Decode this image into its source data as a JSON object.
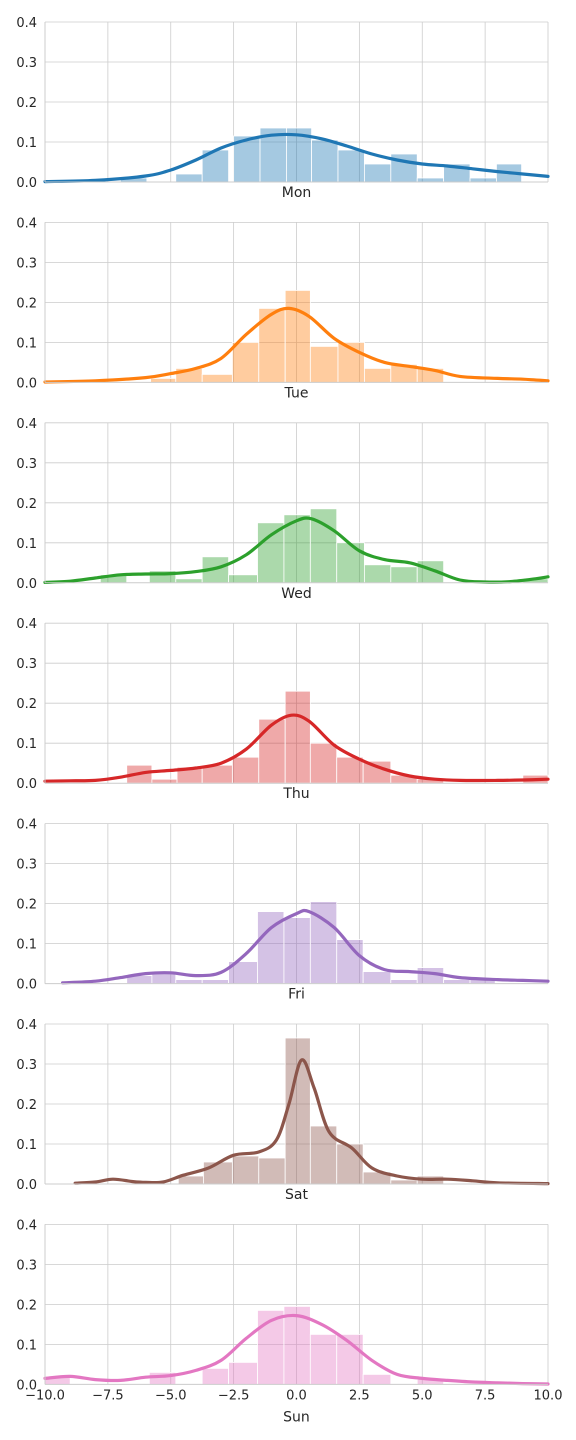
{
  "chart_data": [
    {
      "type": "bar",
      "xlabel": "Mon",
      "color": "#1f77b4",
      "xlim": [
        -10.0,
        10.0
      ],
      "ylim": [
        0.0,
        0.4
      ],
      "yticks": [
        "0.0",
        "0.1",
        "0.2",
        "0.3",
        "0.4"
      ],
      "bins": [
        [
          -7.0,
          -5.95,
          0.01
        ],
        [
          -4.8,
          -3.75,
          0.02
        ],
        [
          -3.75,
          -2.7,
          0.08
        ],
        [
          -2.5,
          -1.45,
          0.115
        ],
        [
          -1.45,
          -0.4,
          0.135
        ],
        [
          -0.4,
          0.6,
          0.135
        ],
        [
          0.6,
          1.65,
          0.105
        ],
        [
          1.65,
          2.7,
          0.08
        ],
        [
          2.7,
          3.75,
          0.045
        ],
        [
          3.75,
          4.8,
          0.07
        ],
        [
          4.8,
          5.85,
          0.01
        ],
        [
          5.85,
          6.9,
          0.045
        ],
        [
          6.9,
          7.95,
          0.01
        ],
        [
          7.95,
          8.95,
          0.045
        ]
      ],
      "kde": [
        [
          -10,
          0.001
        ],
        [
          -8,
          0.004
        ],
        [
          -6,
          0.015
        ],
        [
          -5,
          0.03
        ],
        [
          -4,
          0.055
        ],
        [
          -3,
          0.085
        ],
        [
          -2,
          0.105
        ],
        [
          -1,
          0.117
        ],
        [
          0,
          0.118
        ],
        [
          1,
          0.108
        ],
        [
          2,
          0.09
        ],
        [
          3,
          0.07
        ],
        [
          4,
          0.055
        ],
        [
          5,
          0.045
        ],
        [
          6,
          0.04
        ],
        [
          7,
          0.033
        ],
        [
          8,
          0.026
        ],
        [
          9,
          0.02
        ],
        [
          10,
          0.014
        ]
      ]
    },
    {
      "type": "bar",
      "xlabel": "Tue",
      "color": "#ff7f0e",
      "xlim": [
        -10.0,
        10.0
      ],
      "ylim": [
        0.0,
        0.4
      ],
      "yticks": [
        "0.0",
        "0.1",
        "0.2",
        "0.3",
        "0.4"
      ],
      "bins": [
        [
          -5.8,
          -4.8,
          0.01
        ],
        [
          -4.8,
          -3.75,
          0.035
        ],
        [
          -3.75,
          -2.55,
          0.02
        ],
        [
          -2.55,
          -1.5,
          0.1
        ],
        [
          -1.5,
          -0.45,
          0.185
        ],
        [
          -0.45,
          0.55,
          0.23
        ],
        [
          0.55,
          1.65,
          0.09
        ],
        [
          1.65,
          2.7,
          0.1
        ],
        [
          2.7,
          3.75,
          0.035
        ],
        [
          3.75,
          4.8,
          0.045
        ],
        [
          4.8,
          5.85,
          0.035
        ]
      ],
      "kde": [
        [
          -10,
          0.001
        ],
        [
          -8,
          0.004
        ],
        [
          -6,
          0.012
        ],
        [
          -5,
          0.022
        ],
        [
          -4,
          0.035
        ],
        [
          -3,
          0.06
        ],
        [
          -2,
          0.12
        ],
        [
          -1,
          0.17
        ],
        [
          -0.3,
          0.185
        ],
        [
          0.5,
          0.165
        ],
        [
          1.5,
          0.11
        ],
        [
          2.5,
          0.075
        ],
        [
          3.5,
          0.05
        ],
        [
          4.5,
          0.04
        ],
        [
          5.5,
          0.03
        ],
        [
          6.5,
          0.015
        ],
        [
          8,
          0.01
        ],
        [
          9,
          0.008
        ],
        [
          10,
          0.004
        ]
      ]
    },
    {
      "type": "bar",
      "xlabel": "Wed",
      "color": "#2ca02c",
      "xlim": [
        -10.0,
        10.0
      ],
      "ylim": [
        0.0,
        0.4
      ],
      "yticks": [
        "0.0",
        "0.1",
        "0.2",
        "0.3",
        "0.4"
      ],
      "bins": [
        [
          -7.8,
          -6.75,
          0.02
        ],
        [
          -5.85,
          -4.8,
          0.03
        ],
        [
          -4.8,
          -3.75,
          0.01
        ],
        [
          -3.75,
          -2.7,
          0.065
        ],
        [
          -2.7,
          -1.55,
          0.02
        ],
        [
          -1.55,
          -0.5,
          0.15
        ],
        [
          -0.5,
          0.55,
          0.17
        ],
        [
          0.55,
          1.6,
          0.185
        ],
        [
          1.6,
          2.7,
          0.1
        ],
        [
          2.7,
          3.75,
          0.045
        ],
        [
          3.75,
          4.8,
          0.04
        ],
        [
          4.8,
          5.85,
          0.055
        ],
        [
          9.0,
          10.0,
          0.01
        ]
      ],
      "kde": [
        [
          -10,
          0.001
        ],
        [
          -9,
          0.004
        ],
        [
          -8,
          0.012
        ],
        [
          -7,
          0.02
        ],
        [
          -6,
          0.022
        ],
        [
          -5,
          0.023
        ],
        [
          -4,
          0.028
        ],
        [
          -3,
          0.04
        ],
        [
          -2,
          0.07
        ],
        [
          -1,
          0.12
        ],
        [
          0,
          0.155
        ],
        [
          0.6,
          0.16
        ],
        [
          1.5,
          0.13
        ],
        [
          2.5,
          0.08
        ],
        [
          3.5,
          0.058
        ],
        [
          4.5,
          0.05
        ],
        [
          5.5,
          0.03
        ],
        [
          6.5,
          0.007
        ],
        [
          7.5,
          0.002
        ],
        [
          8.5,
          0.003
        ],
        [
          9.5,
          0.01
        ],
        [
          10,
          0.015
        ]
      ]
    },
    {
      "type": "bar",
      "xlabel": "Thu",
      "color": "#d62728",
      "xlim": [
        -10.0,
        10.0
      ],
      "ylim": [
        0.0,
        0.4
      ],
      "yticks": [
        "0.0",
        "0.1",
        "0.2",
        "0.3",
        "0.4"
      ],
      "bins": [
        [
          -6.75,
          -5.75,
          0.045
        ],
        [
          -5.75,
          -4.75,
          0.01
        ],
        [
          -4.75,
          -3.75,
          0.04
        ],
        [
          -3.75,
          -2.55,
          0.045
        ],
        [
          -2.55,
          -1.5,
          0.065
        ],
        [
          -1.5,
          -0.45,
          0.16
        ],
        [
          -0.45,
          0.55,
          0.23
        ],
        [
          0.55,
          1.6,
          0.1
        ],
        [
          1.6,
          2.65,
          0.065
        ],
        [
          2.65,
          3.75,
          0.055
        ],
        [
          3.75,
          4.8,
          0.02
        ],
        [
          4.8,
          5.85,
          0.01
        ],
        [
          9.0,
          10.0,
          0.02
        ]
      ],
      "kde": [
        [
          -10,
          0.005
        ],
        [
          -9,
          0.006
        ],
        [
          -8,
          0.007
        ],
        [
          -7,
          0.015
        ],
        [
          -6,
          0.027
        ],
        [
          -5,
          0.032
        ],
        [
          -4,
          0.038
        ],
        [
          -3,
          0.05
        ],
        [
          -2,
          0.085
        ],
        [
          -1,
          0.145
        ],
        [
          -0.2,
          0.17
        ],
        [
          0.5,
          0.155
        ],
        [
          1.5,
          0.095
        ],
        [
          2.5,
          0.06
        ],
        [
          3.5,
          0.035
        ],
        [
          4.5,
          0.018
        ],
        [
          5.5,
          0.01
        ],
        [
          6.5,
          0.007
        ],
        [
          8,
          0.007
        ],
        [
          9,
          0.008
        ],
        [
          10,
          0.01
        ]
      ]
    },
    {
      "type": "bar",
      "xlabel": "Fri",
      "color": "#9467bd",
      "xlim": [
        -10.0,
        10.0
      ],
      "ylim": [
        0.0,
        0.4
      ],
      "yticks": [
        "0.0",
        "0.1",
        "0.2",
        "0.3",
        "0.4"
      ],
      "bins": [
        [
          -6.75,
          -5.75,
          0.02
        ],
        [
          -5.75,
          -4.8,
          0.025
        ],
        [
          -4.8,
          -3.75,
          0.01
        ],
        [
          -3.75,
          -2.7,
          0.01
        ],
        [
          -2.7,
          -1.55,
          0.055
        ],
        [
          -1.55,
          -0.5,
          0.18
        ],
        [
          -0.5,
          0.55,
          0.165
        ],
        [
          0.55,
          1.6,
          0.205
        ],
        [
          1.6,
          2.65,
          0.11
        ],
        [
          2.65,
          3.75,
          0.03
        ],
        [
          3.75,
          4.8,
          0.01
        ],
        [
          4.8,
          5.85,
          0.04
        ],
        [
          5.85,
          6.9,
          0.01
        ],
        [
          6.9,
          7.9,
          0.01
        ]
      ],
      "kde": [
        [
          -9.3,
          0.002
        ],
        [
          -8,
          0.006
        ],
        [
          -7,
          0.015
        ],
        [
          -6,
          0.025
        ],
        [
          -5,
          0.027
        ],
        [
          -4,
          0.02
        ],
        [
          -3,
          0.028
        ],
        [
          -2,
          0.075
        ],
        [
          -1,
          0.14
        ],
        [
          0,
          0.175
        ],
        [
          0.5,
          0.18
        ],
        [
          1.5,
          0.14
        ],
        [
          2.5,
          0.07
        ],
        [
          3.5,
          0.035
        ],
        [
          4.5,
          0.03
        ],
        [
          5.5,
          0.025
        ],
        [
          6.5,
          0.015
        ],
        [
          8,
          0.01
        ],
        [
          9,
          0.008
        ],
        [
          10,
          0.006
        ]
      ]
    },
    {
      "type": "bar",
      "xlabel": "Sat",
      "color": "#8c564b",
      "xlim": [
        -10.0,
        10.0
      ],
      "ylim": [
        0.0,
        0.4
      ],
      "yticks": [
        "0.0",
        "0.1",
        "0.2",
        "0.3",
        "0.4"
      ],
      "bins": [
        [
          -4.7,
          -3.7,
          0.02
        ],
        [
          -3.7,
          -2.55,
          0.055
        ],
        [
          -2.55,
          -1.5,
          0.07
        ],
        [
          -1.5,
          -0.45,
          0.065
        ],
        [
          -0.45,
          0.55,
          0.365
        ],
        [
          0.55,
          1.6,
          0.145
        ],
        [
          1.6,
          2.65,
          0.1
        ],
        [
          2.65,
          3.75,
          0.03
        ],
        [
          3.75,
          4.8,
          0.01
        ],
        [
          4.8,
          5.85,
          0.02
        ]
      ],
      "kde": [
        [
          -8.8,
          0.002
        ],
        [
          -8,
          0.005
        ],
        [
          -7.3,
          0.012
        ],
        [
          -6.5,
          0.006
        ],
        [
          -6,
          0.004
        ],
        [
          -5.3,
          0.005
        ],
        [
          -4.5,
          0.022
        ],
        [
          -3.5,
          0.04
        ],
        [
          -2.5,
          0.072
        ],
        [
          -1.5,
          0.08
        ],
        [
          -0.8,
          0.11
        ],
        [
          -0.3,
          0.2
        ],
        [
          0.2,
          0.31
        ],
        [
          0.7,
          0.24
        ],
        [
          1.3,
          0.13
        ],
        [
          2.2,
          0.09
        ],
        [
          3,
          0.04
        ],
        [
          4,
          0.02
        ],
        [
          5,
          0.012
        ],
        [
          6,
          0.012
        ],
        [
          7,
          0.008
        ],
        [
          8,
          0.003
        ],
        [
          10,
          0.001
        ]
      ]
    },
    {
      "type": "bar",
      "xlabel": "Sun",
      "color": "#e377c2",
      "xlim": [
        -10.0,
        10.0
      ],
      "ylim": [
        0.0,
        0.4
      ],
      "yticks": [
        "0.0",
        "0.1",
        "0.2",
        "0.3",
        "0.4"
      ],
      "xticks": [
        "−10.0",
        "−7.5",
        "−5.0",
        "−2.5",
        "0.0",
        "2.5",
        "5.0",
        "7.5",
        "10.0"
      ],
      "bins": [
        [
          -10.0,
          -9.0,
          0.02
        ],
        [
          -5.85,
          -4.8,
          0.03
        ],
        [
          -3.75,
          -2.7,
          0.04
        ],
        [
          -2.7,
          -1.55,
          0.055
        ],
        [
          -1.55,
          -0.5,
          0.185
        ],
        [
          -0.5,
          0.55,
          0.195
        ],
        [
          0.55,
          1.6,
          0.125
        ],
        [
          1.6,
          2.65,
          0.125
        ],
        [
          2.65,
          3.75,
          0.025
        ],
        [
          4.8,
          5.85,
          0.015
        ]
      ],
      "kde": [
        [
          -10,
          0.015
        ],
        [
          -9,
          0.02
        ],
        [
          -8,
          0.012
        ],
        [
          -7,
          0.01
        ],
        [
          -6,
          0.018
        ],
        [
          -5,
          0.022
        ],
        [
          -4,
          0.035
        ],
        [
          -3,
          0.06
        ],
        [
          -2,
          0.115
        ],
        [
          -1,
          0.16
        ],
        [
          0,
          0.172
        ],
        [
          1,
          0.15
        ],
        [
          2,
          0.11
        ],
        [
          3,
          0.06
        ],
        [
          4,
          0.025
        ],
        [
          5,
          0.015
        ],
        [
          6,
          0.01
        ],
        [
          7,
          0.006
        ],
        [
          8,
          0.004
        ],
        [
          9,
          0.002
        ],
        [
          10,
          0.001
        ]
      ]
    }
  ]
}
